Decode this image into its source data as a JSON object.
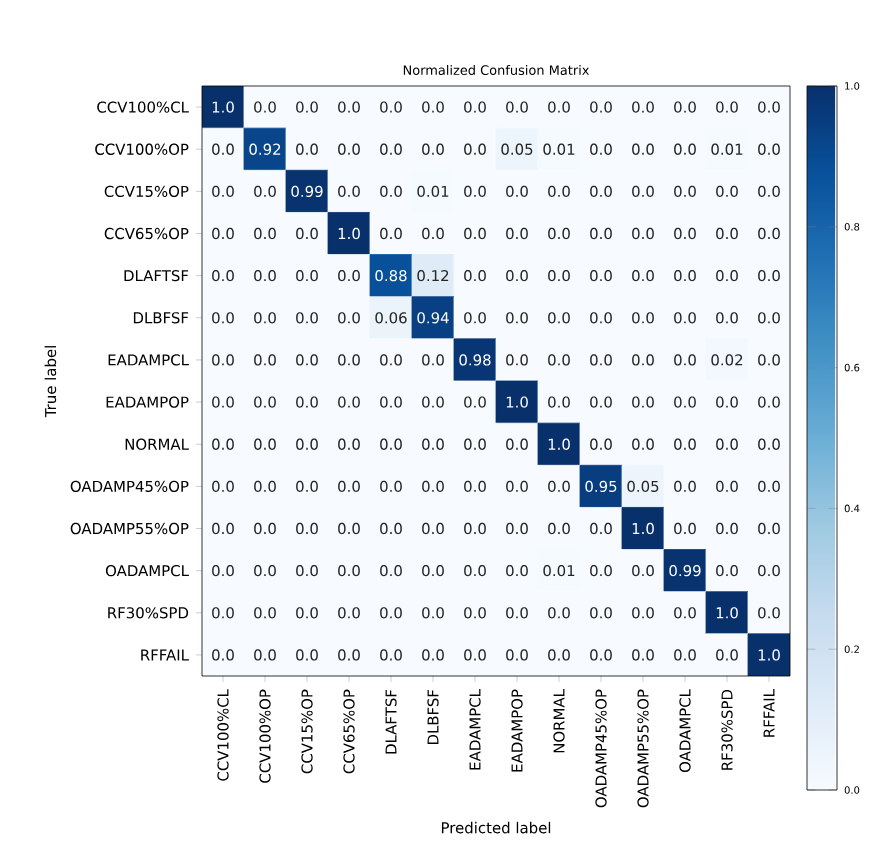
{
  "chart_data": {
    "type": "heatmap",
    "title": "Normalized Confusion Matrix",
    "xlabel": "Predicted label",
    "ylabel": "True label",
    "categories": [
      "CCV100%CL",
      "CCV100%OP",
      "CCV15%OP",
      "CCV65%OP",
      "DLAFTSF",
      "DLBFSF",
      "EADAMPCL",
      "EADAMPOP",
      "NORMAL",
      "OADAMP45%OP",
      "OADAMP55%OP",
      "OADAMPCL",
      "RF30%SPD",
      "RFFAIL"
    ],
    "y_categories": [
      "CCV100%CL",
      "CCV100%OP",
      "CCV15%OP",
      "CCV65%OP",
      "DLAFTSF",
      "DLBFSF",
      "EADAMPCL",
      "EADAMPOP",
      "NORMAL",
      "OADAMP45%OP",
      "OADAMP55%OP",
      "OADAMPCL",
      "RF30%SPD",
      "RFFAIL"
    ],
    "cells": [
      [
        1,
        0,
        0,
        0,
        0,
        0,
        0,
        0,
        0,
        0,
        0,
        0,
        0,
        0
      ],
      [
        0,
        0.92,
        0,
        0,
        0,
        0,
        0,
        0.05,
        0.01,
        0,
        0,
        0,
        0.01,
        0
      ],
      [
        0,
        0,
        0.99,
        0,
        0,
        0.01,
        0,
        0,
        0,
        0,
        0,
        0,
        0,
        0
      ],
      [
        0,
        0,
        0,
        1,
        0,
        0,
        0,
        0,
        0,
        0,
        0,
        0,
        0,
        0
      ],
      [
        0,
        0,
        0,
        0,
        0.88,
        0.12,
        0,
        0,
        0,
        0,
        0,
        0,
        0,
        0
      ],
      [
        0,
        0,
        0,
        0,
        0.06,
        0.94,
        0,
        0,
        0,
        0,
        0,
        0,
        0,
        0
      ],
      [
        0,
        0,
        0,
        0,
        0,
        0,
        0.98,
        0,
        0,
        0,
        0,
        0,
        0.02,
        0
      ],
      [
        0,
        0,
        0,
        0,
        0,
        0,
        0,
        1,
        0,
        0,
        0,
        0,
        0,
        0
      ],
      [
        0,
        0,
        0,
        0,
        0,
        0,
        0,
        0,
        1,
        0,
        0,
        0,
        0,
        0
      ],
      [
        0,
        0,
        0,
        0,
        0,
        0,
        0,
        0,
        0,
        0.95,
        0.05,
        0,
        0,
        0
      ],
      [
        0,
        0,
        0,
        0,
        0,
        0,
        0,
        0,
        0,
        0,
        1,
        0,
        0,
        0
      ],
      [
        0,
        0,
        0,
        0,
        0,
        0,
        0,
        0,
        0.01,
        0,
        0,
        0.99,
        0,
        0
      ],
      [
        0,
        0,
        0,
        0,
        0,
        0,
        0,
        0,
        0,
        0,
        0,
        0,
        1,
        0
      ],
      [
        0,
        0,
        0,
        0,
        0,
        0,
        0,
        0,
        0,
        0,
        0,
        0,
        0,
        1
      ]
    ],
    "cell_labels": [
      [
        "1.0",
        "0.0",
        "0.0",
        "0.0",
        "0.0",
        "0.0",
        "0.0",
        "0.0",
        "0.0",
        "0.0",
        "0.0",
        "0.0",
        "0.0",
        "0.0"
      ],
      [
        "0.0",
        "0.92",
        "0.0",
        "0.0",
        "0.0",
        "0.0",
        "0.0",
        "0.05",
        "0.01",
        "0.0",
        "0.0",
        "0.0",
        "0.01",
        "0.0"
      ],
      [
        "0.0",
        "0.0",
        "0.99",
        "0.0",
        "0.0",
        "0.01",
        "0.0",
        "0.0",
        "0.0",
        "0.0",
        "0.0",
        "0.0",
        "0.0",
        "0.0"
      ],
      [
        "0.0",
        "0.0",
        "0.0",
        "1.0",
        "0.0",
        "0.0",
        "0.0",
        "0.0",
        "0.0",
        "0.0",
        "0.0",
        "0.0",
        "0.0",
        "0.0"
      ],
      [
        "0.0",
        "0.0",
        "0.0",
        "0.0",
        "0.88",
        "0.12",
        "0.0",
        "0.0",
        "0.0",
        "0.0",
        "0.0",
        "0.0",
        "0.0",
        "0.0"
      ],
      [
        "0.0",
        "0.0",
        "0.0",
        "0.0",
        "0.06",
        "0.94",
        "0.0",
        "0.0",
        "0.0",
        "0.0",
        "0.0",
        "0.0",
        "0.0",
        "0.0"
      ],
      [
        "0.0",
        "0.0",
        "0.0",
        "0.0",
        "0.0",
        "0.0",
        "0.98",
        "0.0",
        "0.0",
        "0.0",
        "0.0",
        "0.0",
        "0.02",
        "0.0"
      ],
      [
        "0.0",
        "0.0",
        "0.0",
        "0.0",
        "0.0",
        "0.0",
        "0.0",
        "1.0",
        "0.0",
        "0.0",
        "0.0",
        "0.0",
        "0.0",
        "0.0"
      ],
      [
        "0.0",
        "0.0",
        "0.0",
        "0.0",
        "0.0",
        "0.0",
        "0.0",
        "0.0",
        "1.0",
        "0.0",
        "0.0",
        "0.0",
        "0.0",
        "0.0"
      ],
      [
        "0.0",
        "0.0",
        "0.0",
        "0.0",
        "0.0",
        "0.0",
        "0.0",
        "0.0",
        "0.0",
        "0.95",
        "0.05",
        "0.0",
        "0.0",
        "0.0"
      ],
      [
        "0.0",
        "0.0",
        "0.0",
        "0.0",
        "0.0",
        "0.0",
        "0.0",
        "0.0",
        "0.0",
        "0.0",
        "1.0",
        "0.0",
        "0.0",
        "0.0"
      ],
      [
        "0.0",
        "0.0",
        "0.0",
        "0.0",
        "0.0",
        "0.0",
        "0.0",
        "0.0",
        "0.01",
        "0.0",
        "0.0",
        "0.99",
        "0.0",
        "0.0"
      ],
      [
        "0.0",
        "0.0",
        "0.0",
        "0.0",
        "0.0",
        "0.0",
        "0.0",
        "0.0",
        "0.0",
        "0.0",
        "0.0",
        "0.0",
        "1.0",
        "0.0"
      ],
      [
        "0.0",
        "0.0",
        "0.0",
        "0.0",
        "0.0",
        "0.0",
        "0.0",
        "0.0",
        "0.0",
        "0.0",
        "0.0",
        "0.0",
        "0.0",
        "1.0"
      ]
    ],
    "clim": [
      0,
      1
    ],
    "cticks": [
      {
        "value": 0,
        "label": "0.0"
      },
      0.2,
      0.4,
      0.6,
      0.8,
      {
        "value": 1,
        "label": "1.0"
      }
    ]
  }
}
